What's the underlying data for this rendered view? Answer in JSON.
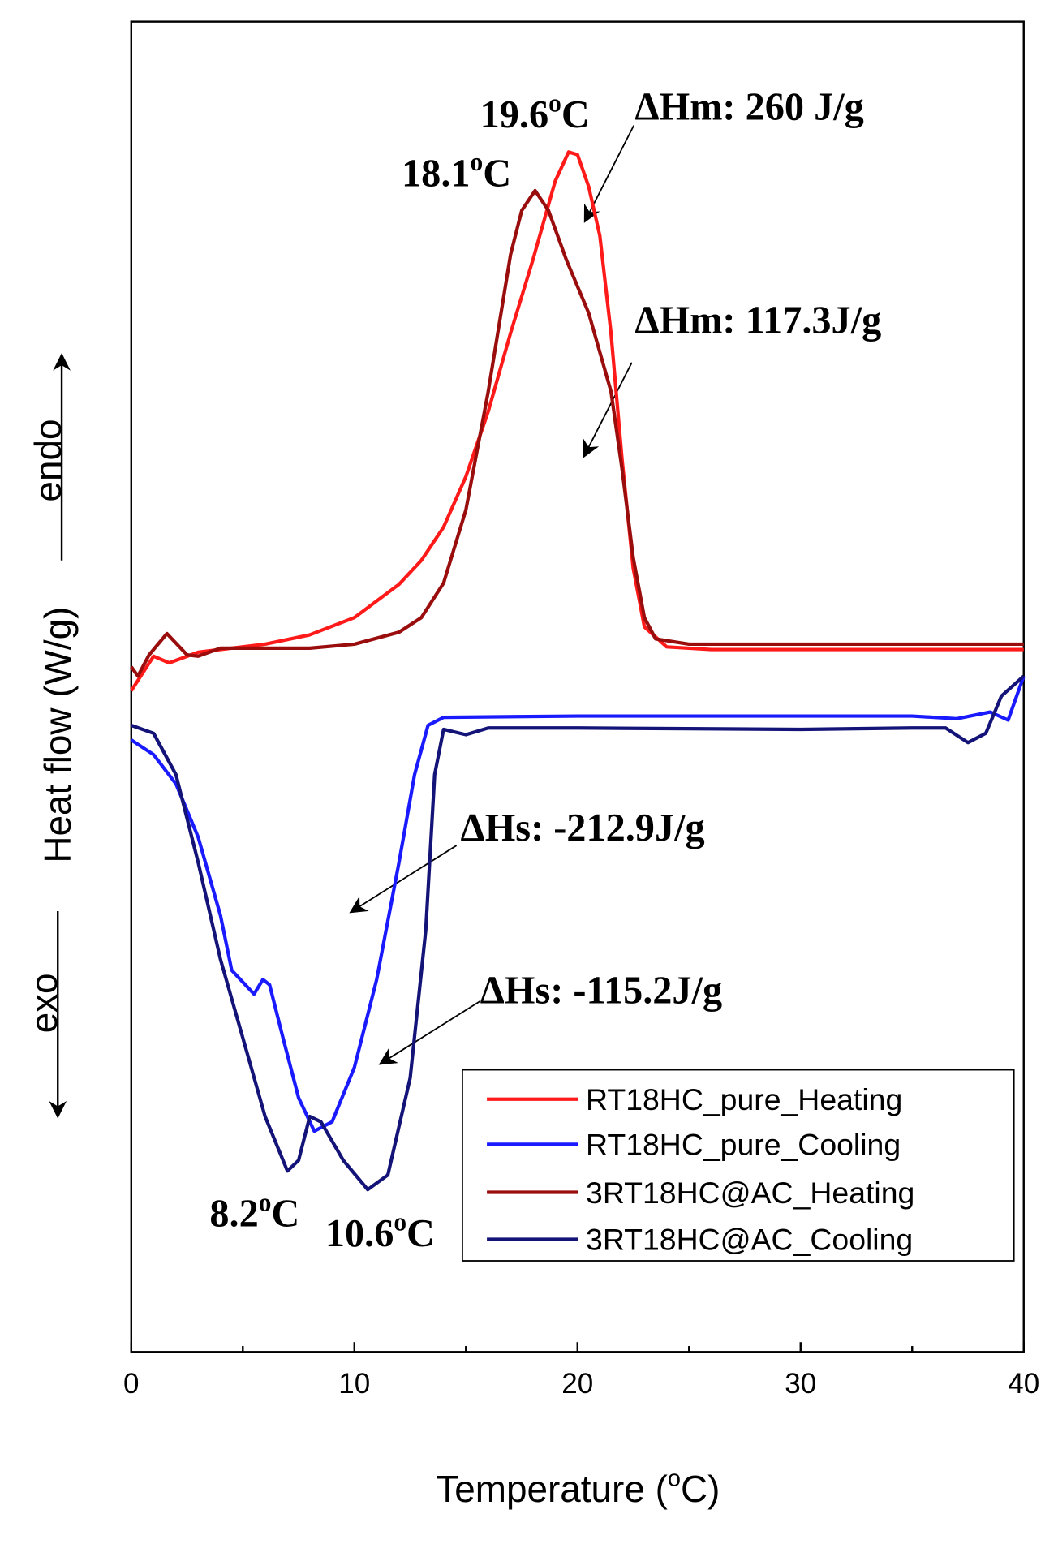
{
  "chart_data": {
    "type": "line",
    "x_label": {
      "pre": "Temperature (",
      "sup": "o",
      "post": "C)"
    },
    "y_label": "Heat flow (W/g)",
    "y_up_label": "endo",
    "y_down_label": "exo",
    "xlim": [
      0,
      40
    ],
    "xticks": [
      0,
      10,
      20,
      30,
      40
    ],
    "xminorticks": [
      5,
      15,
      25,
      35
    ],
    "ylim": [
      0,
      100
    ],
    "legend": "lower right",
    "series": [
      {
        "name": "RT18HC_pure_Heating",
        "color": "#ff1a1a",
        "x": [
          0,
          1,
          1.7,
          3,
          6,
          8,
          10,
          12,
          13,
          14,
          15,
          16,
          17,
          18,
          19,
          19.6,
          20,
          20.5,
          21,
          21.5,
          22,
          22.5,
          23,
          24,
          26,
          30,
          35,
          40
        ],
        "values": [
          49.7,
          52.3,
          51.8,
          52.6,
          53.2,
          53.9,
          55.2,
          57.7,
          59.5,
          62.0,
          65.8,
          70.7,
          76.6,
          82.1,
          88.0,
          90.2,
          90.0,
          87.6,
          83.9,
          76.6,
          67.0,
          58.9,
          54.5,
          53.0,
          52.8,
          52.8,
          52.8,
          52.8
        ]
      },
      {
        "name": "RT18HC_pure_Cooling",
        "color": "#1a1aff",
        "x": [
          0,
          1,
          2,
          3,
          4,
          4.5,
          5.5,
          5.9,
          6.2,
          6.8,
          7.5,
          8.2,
          9,
          10,
          11,
          12,
          12.7,
          13.3,
          14,
          20,
          30,
          35,
          37,
          38.5,
          39.3,
          40
        ],
        "values": [
          46.0,
          44.9,
          42.7,
          38.7,
          32.8,
          28.7,
          26.9,
          28.0,
          27.6,
          23.6,
          19.1,
          16.6,
          17.3,
          21.4,
          28.0,
          36.8,
          43.4,
          47.1,
          47.7,
          47.8,
          47.8,
          47.8,
          47.6,
          48.1,
          47.5,
          50.8
        ]
      },
      {
        "name": "3RT18HC@AC_Heating",
        "color": "#990d0d",
        "x": [
          0,
          0.3,
          0.8,
          1.6,
          2.5,
          3,
          4,
          6,
          8,
          10,
          12,
          13,
          14,
          15,
          16,
          17,
          17.5,
          18.1,
          18.7,
          19.5,
          20.5,
          21.5,
          22,
          22.5,
          23,
          23.5,
          25,
          30,
          40
        ],
        "values": [
          51.5,
          50.8,
          52.4,
          54.0,
          52.4,
          52.3,
          52.9,
          52.9,
          52.9,
          53.2,
          54.1,
          55.2,
          57.8,
          63.3,
          72.2,
          82.5,
          85.8,
          87.3,
          85.8,
          82.1,
          78.1,
          72.2,
          66.3,
          59.7,
          55.2,
          53.6,
          53.2,
          53.2,
          53.2
        ]
      },
      {
        "name": "3RT18HC@AC_Cooling",
        "color": "#141478",
        "x": [
          0,
          1,
          2,
          3,
          4,
          5,
          6,
          7,
          7.5,
          8,
          8.5,
          9.5,
          10.6,
          11.5,
          12.5,
          13.2,
          13.6,
          14,
          15,
          16,
          20,
          30,
          35,
          36.5,
          37.5,
          38.3,
          39,
          40
        ],
        "values": [
          47.1,
          46.5,
          43.4,
          36.8,
          29.5,
          23.6,
          17.7,
          13.6,
          14.4,
          17.7,
          17.3,
          14.4,
          12.2,
          13.3,
          20.6,
          31.7,
          43.4,
          46.8,
          46.4,
          46.9,
          46.9,
          46.8,
          46.9,
          46.9,
          45.8,
          46.5,
          49.3,
          50.8
        ]
      }
    ],
    "annotations": [
      {
        "text": "19.6",
        "sup": "o",
        "unit": "C"
      },
      {
        "text": "ΔHm: 260 J/g"
      },
      {
        "text": "18.1",
        "sup": "o",
        "unit": "C"
      },
      {
        "text": "ΔHm: 117.3J/g"
      },
      {
        "text": "ΔHs: -212.9J/g"
      },
      {
        "text": "ΔHs: -115.2J/g"
      },
      {
        "text": "8.2",
        "sup": "o",
        "unit": "C"
      },
      {
        "text": "10.6",
        "sup": "o",
        "unit": "C"
      }
    ]
  }
}
